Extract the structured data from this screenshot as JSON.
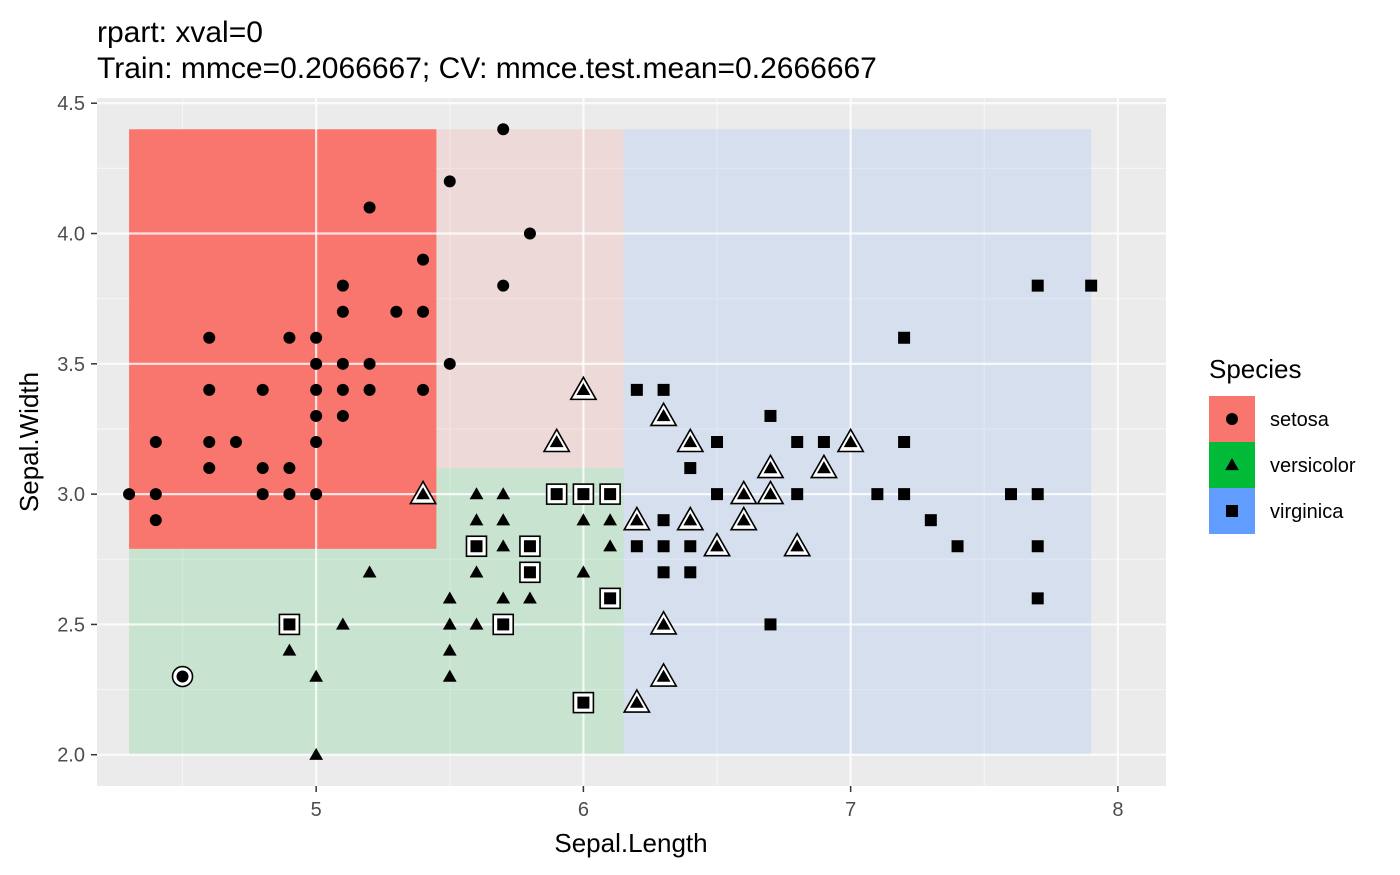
{
  "chart_data": {
    "type": "scatter",
    "title": "rpart: xval=0",
    "subtitle": "Train: mmce=0.2066667; CV: mmce.test.mean=0.2666667",
    "xlabel": "Sepal.Length",
    "ylabel": "Sepal.Width",
    "xlim": [
      4.18,
      8.18
    ],
    "ylim": [
      1.88,
      4.52
    ],
    "x_ticks": [
      5,
      6,
      7,
      8
    ],
    "x_tick_labels": [
      "5",
      "6",
      "7",
      "8"
    ],
    "y_ticks": [
      2.0,
      2.5,
      3.0,
      3.5,
      4.0,
      4.5
    ],
    "y_tick_labels": [
      "2.0",
      "2.5",
      "3.0",
      "3.5",
      "4.0",
      "4.5"
    ],
    "grid": true,
    "legend": {
      "title": "Species",
      "position": "right",
      "entries": [
        {
          "label": "setosa",
          "color": "#F8766D",
          "shape": "circle"
        },
        {
          "label": "versicolor",
          "color": "#00BA38",
          "shape": "triangle"
        },
        {
          "label": "virginica",
          "color": "#619CFF",
          "shape": "square"
        }
      ]
    },
    "regions": [
      {
        "species": "setosa",
        "x": [
          4.3,
          5.45
        ],
        "y": [
          2.79,
          4.4
        ],
        "opacity": "strong"
      },
      {
        "species": "setosa",
        "x": [
          5.45,
          6.15
        ],
        "y": [
          3.1,
          4.4
        ],
        "opacity": "light"
      },
      {
        "species": "versicolor",
        "x": [
          4.3,
          5.45
        ],
        "y": [
          2.0,
          2.79
        ],
        "opacity": "light"
      },
      {
        "species": "versicolor",
        "x": [
          5.45,
          6.15
        ],
        "y": [
          2.0,
          3.1
        ],
        "opacity": "light"
      },
      {
        "species": "virginica",
        "x": [
          6.15,
          7.9
        ],
        "y": [
          2.0,
          4.4
        ],
        "opacity": "light"
      }
    ],
    "series": [
      {
        "name": "setosa",
        "shape": "circle",
        "points": [
          [
            4.3,
            3.0
          ],
          [
            4.4,
            3.2
          ],
          [
            4.4,
            3.0
          ],
          [
            4.4,
            2.9
          ],
          [
            4.6,
            3.6
          ],
          [
            4.6,
            3.4
          ],
          [
            4.6,
            3.2
          ],
          [
            4.6,
            3.1
          ],
          [
            4.7,
            3.2
          ],
          [
            4.8,
            3.4
          ],
          [
            4.8,
            3.1
          ],
          [
            4.8,
            3.0
          ],
          [
            4.9,
            3.6
          ],
          [
            4.9,
            3.1
          ],
          [
            4.9,
            3.0
          ],
          [
            5.0,
            3.6
          ],
          [
            5.0,
            3.5
          ],
          [
            5.0,
            3.4
          ],
          [
            5.0,
            3.3
          ],
          [
            5.0,
            3.2
          ],
          [
            5.0,
            3.0
          ],
          [
            5.1,
            3.8
          ],
          [
            5.1,
            3.7
          ],
          [
            5.1,
            3.5
          ],
          [
            5.1,
            3.4
          ],
          [
            5.1,
            3.3
          ],
          [
            5.2,
            4.1
          ],
          [
            5.2,
            3.5
          ],
          [
            5.2,
            3.4
          ],
          [
            5.3,
            3.7
          ],
          [
            5.4,
            3.9
          ],
          [
            5.4,
            3.7
          ],
          [
            5.4,
            3.4
          ],
          [
            5.5,
            4.2
          ],
          [
            5.5,
            3.5
          ],
          [
            5.7,
            4.4
          ],
          [
            5.7,
            3.8
          ],
          [
            5.8,
            4.0
          ]
        ],
        "misclassified": [
          [
            4.5,
            2.3
          ]
        ]
      },
      {
        "name": "versicolor",
        "shape": "triangle",
        "points": [
          [
            4.9,
            2.4
          ],
          [
            5.0,
            2.3
          ],
          [
            5.0,
            2.0
          ],
          [
            5.1,
            2.5
          ],
          [
            5.2,
            2.7
          ],
          [
            5.5,
            2.6
          ],
          [
            5.5,
            2.5
          ],
          [
            5.5,
            2.4
          ],
          [
            5.5,
            2.3
          ],
          [
            5.6,
            3.0
          ],
          [
            5.6,
            2.9
          ],
          [
            5.6,
            2.7
          ],
          [
            5.6,
            2.5
          ],
          [
            5.7,
            3.0
          ],
          [
            5.7,
            2.9
          ],
          [
            5.7,
            2.8
          ],
          [
            5.7,
            2.6
          ],
          [
            5.8,
            2.7
          ],
          [
            5.8,
            2.6
          ],
          [
            6.0,
            2.9
          ],
          [
            6.0,
            2.7
          ],
          [
            6.1,
            3.0
          ],
          [
            6.1,
            2.9
          ],
          [
            6.1,
            2.8
          ]
        ],
        "misclassified": [
          [
            5.4,
            3.0
          ],
          [
            5.9,
            3.2
          ],
          [
            6.0,
            3.4
          ],
          [
            6.2,
            2.9
          ],
          [
            6.2,
            2.2
          ],
          [
            6.3,
            3.3
          ],
          [
            6.3,
            2.5
          ],
          [
            6.3,
            2.3
          ],
          [
            6.4,
            3.2
          ],
          [
            6.4,
            2.9
          ],
          [
            6.5,
            2.8
          ],
          [
            6.6,
            3.0
          ],
          [
            6.6,
            2.9
          ],
          [
            6.7,
            3.1
          ],
          [
            6.7,
            3.0
          ],
          [
            6.8,
            2.8
          ],
          [
            6.9,
            3.1
          ],
          [
            7.0,
            3.2
          ]
        ]
      },
      {
        "name": "virginica",
        "shape": "square",
        "points": [
          [
            6.2,
            3.4
          ],
          [
            6.2,
            2.8
          ],
          [
            6.3,
            3.4
          ],
          [
            6.3,
            2.9
          ],
          [
            6.3,
            2.8
          ],
          [
            6.3,
            2.7
          ],
          [
            6.4,
            3.1
          ],
          [
            6.4,
            2.8
          ],
          [
            6.4,
            2.7
          ],
          [
            6.5,
            3.2
          ],
          [
            6.5,
            3.0
          ],
          [
            6.7,
            3.3
          ],
          [
            6.7,
            2.5
          ],
          [
            6.8,
            3.2
          ],
          [
            6.8,
            3.0
          ],
          [
            6.9,
            3.2
          ],
          [
            7.1,
            3.0
          ],
          [
            7.2,
            3.6
          ],
          [
            7.2,
            3.2
          ],
          [
            7.2,
            3.0
          ],
          [
            7.3,
            2.9
          ],
          [
            7.4,
            2.8
          ],
          [
            7.6,
            3.0
          ],
          [
            7.7,
            3.8
          ],
          [
            7.7,
            3.0
          ],
          [
            7.7,
            2.8
          ],
          [
            7.7,
            2.6
          ],
          [
            7.9,
            3.8
          ]
        ],
        "misclassified": [
          [
            4.9,
            2.5
          ],
          [
            5.6,
            2.8
          ],
          [
            5.7,
            2.5
          ],
          [
            5.8,
            2.8
          ],
          [
            5.8,
            2.7
          ],
          [
            5.9,
            3.0
          ],
          [
            6.0,
            3.0
          ],
          [
            6.0,
            2.2
          ],
          [
            6.1,
            3.0
          ],
          [
            6.1,
            2.6
          ]
        ]
      }
    ]
  }
}
